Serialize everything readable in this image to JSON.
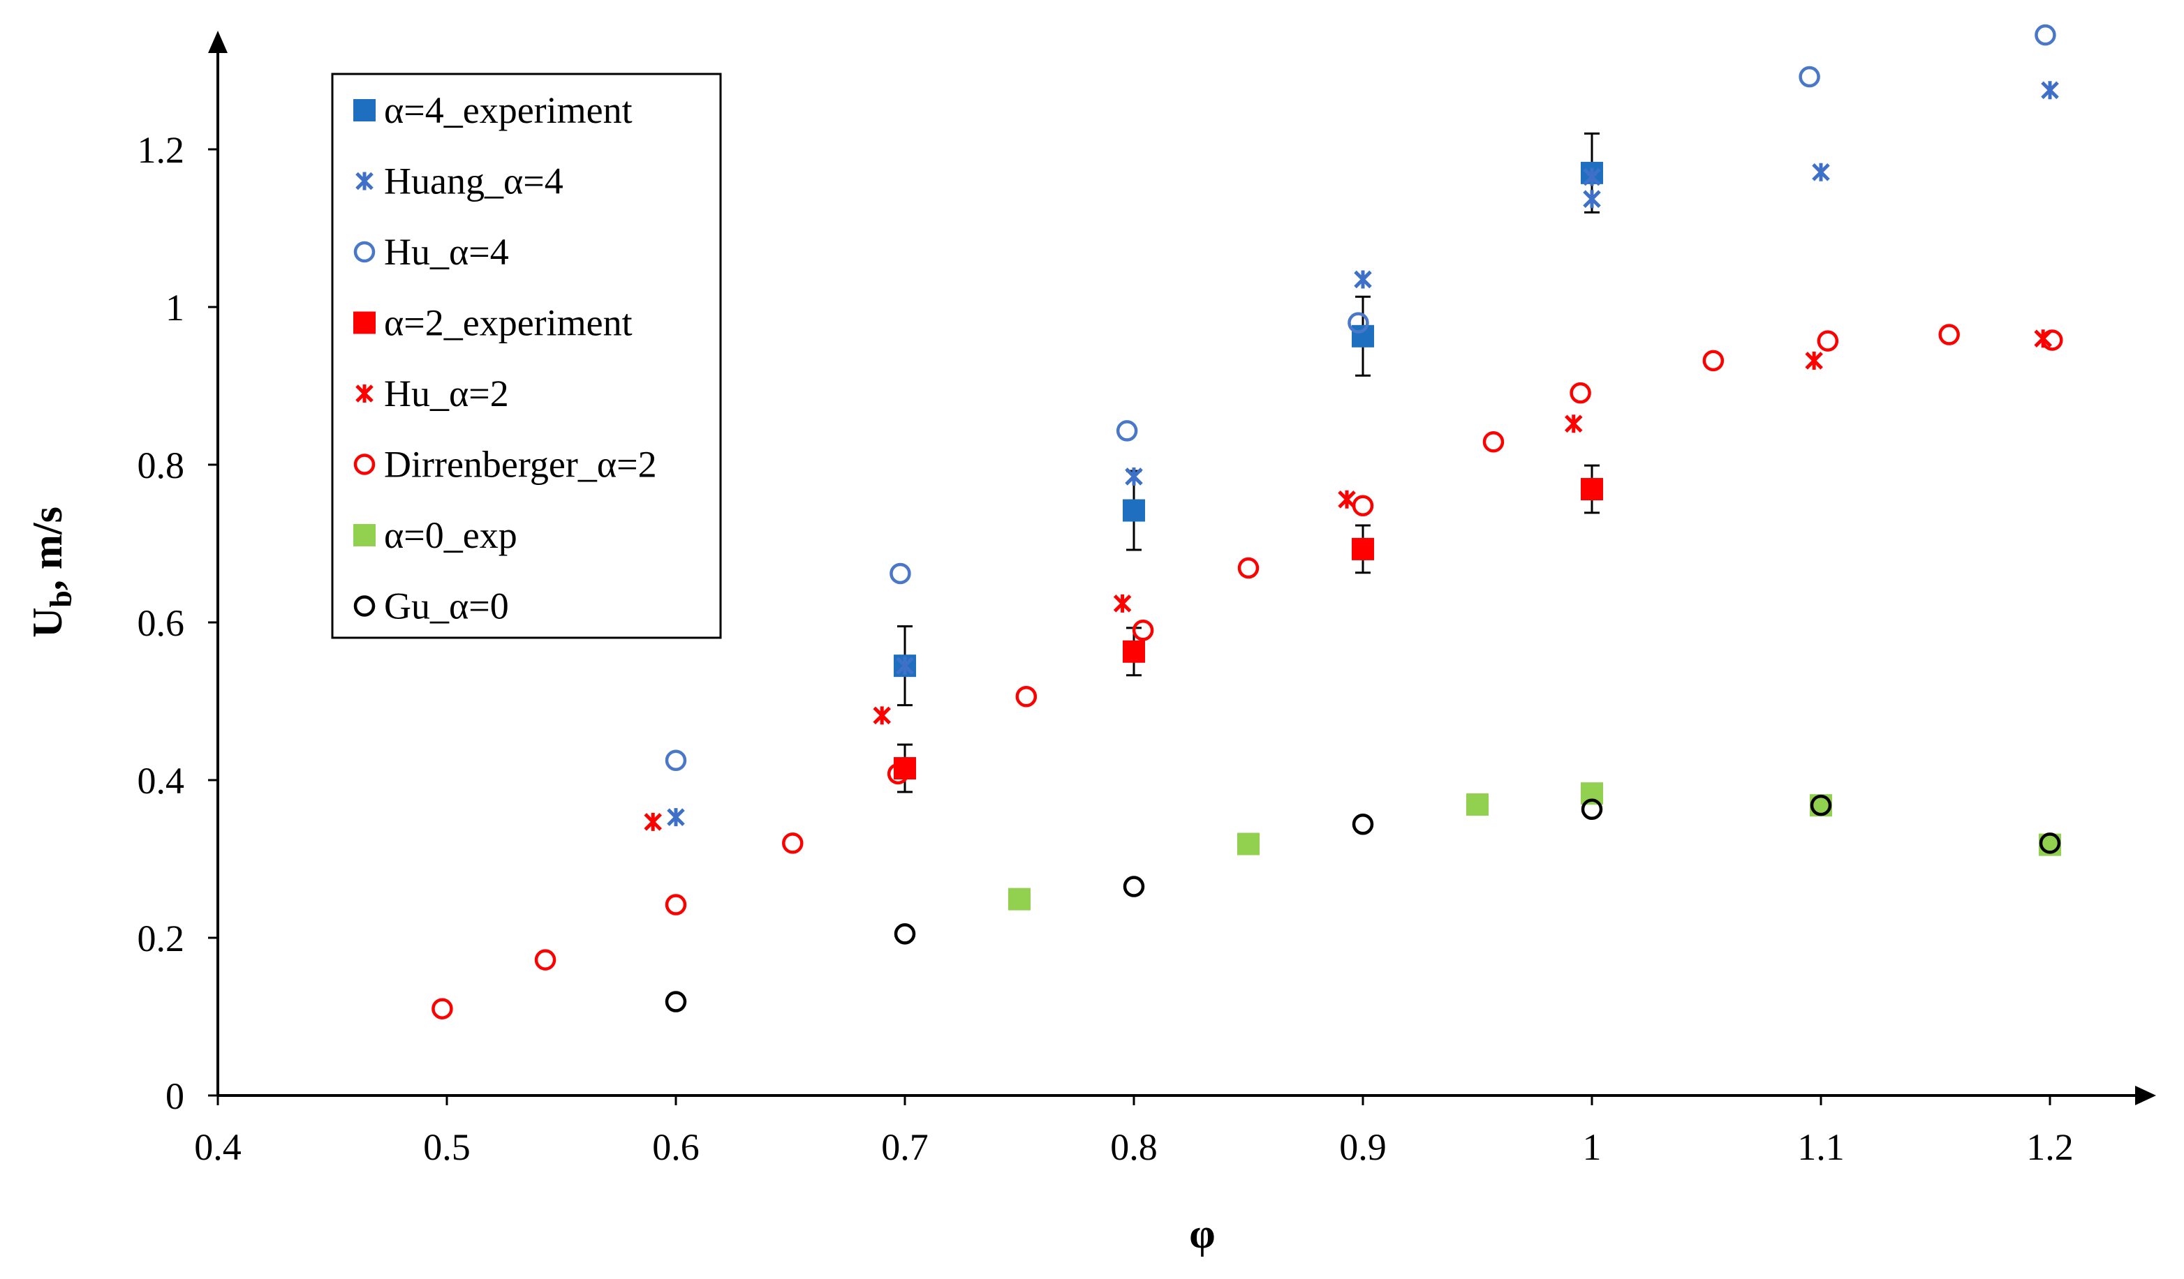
{
  "chart_data": {
    "type": "scatter",
    "title": "",
    "xlabel": "φ",
    "ylabel": "U",
    "ylabel_sub": "b",
    "ylabel_unit": ", m/s",
    "xlim": [
      0.4,
      1.25
    ],
    "ylim": [
      0,
      1.35
    ],
    "xticks": [
      0.4,
      0.5,
      0.6,
      0.7,
      0.8,
      0.9,
      1.0,
      1.1,
      1.2
    ],
    "xtick_labels": [
      "0.4",
      "0.5",
      "0.6",
      "0.7",
      "0.8",
      "0.9",
      "1",
      "1.1",
      "1.2"
    ],
    "yticks": [
      0,
      0.2,
      0.4,
      0.6,
      0.8,
      1.0,
      1.2
    ],
    "ytick_labels": [
      "0",
      "0.2",
      "0.4",
      "0.6",
      "0.8",
      "1",
      "1.2"
    ],
    "grid": false,
    "legend_position": "top-left",
    "series": [
      {
        "name": "α=4_experiment",
        "marker": "square",
        "color": "#1f6fc1",
        "x": [
          0.7,
          0.8,
          0.9,
          1.0
        ],
        "y": [
          0.545,
          0.742,
          0.963,
          1.17
        ],
        "error": [
          0.05,
          0.05,
          0.05,
          0.05
        ]
      },
      {
        "name": "Huang_α=4",
        "marker": "star",
        "color": "#3f70c8",
        "x": [
          0.6,
          0.7,
          0.8,
          0.9,
          1.0,
          1.0,
          1.1,
          1.2
        ],
        "y": [
          0.353,
          0.545,
          0.785,
          1.035,
          1.137,
          1.165,
          1.171,
          1.275
        ]
      },
      {
        "name": "Hu_α=4",
        "marker": "circle",
        "color": "#4a78c8",
        "x": [
          0.6,
          0.698,
          0.797,
          0.898,
          1.095,
          1.198
        ],
        "y": [
          0.425,
          0.662,
          0.843,
          0.98,
          1.292,
          1.345
        ]
      },
      {
        "name": "α=2_experiment",
        "marker": "square",
        "color": "#ff0000",
        "x": [
          0.7,
          0.8,
          0.9,
          1.0
        ],
        "y": [
          0.415,
          0.563,
          0.693,
          0.769
        ],
        "error": [
          0.03,
          0.03,
          0.03,
          0.03
        ]
      },
      {
        "name": "Hu_α=2",
        "marker": "star",
        "color": "#ff0000",
        "x": [
          0.59,
          0.69,
          0.795,
          0.893,
          0.992,
          1.097,
          1.197
        ],
        "y": [
          0.347,
          0.482,
          0.624,
          0.756,
          0.852,
          0.932,
          0.96
        ]
      },
      {
        "name": "Dirrenberger_α=2",
        "marker": "circle",
        "color": "#ff0000",
        "x": [
          0.498,
          0.543,
          0.6,
          0.651,
          0.697,
          0.753,
          0.804,
          0.85,
          0.9,
          0.957,
          0.995,
          1.053,
          1.103,
          1.156,
          1.201
        ],
        "y": [
          0.11,
          0.172,
          0.242,
          0.32,
          0.408,
          0.506,
          0.59,
          0.669,
          0.748,
          0.829,
          0.891,
          0.932,
          0.957,
          0.965,
          0.958
        ]
      },
      {
        "name": "α=0_exp",
        "marker": "square",
        "color": "#92d050",
        "x": [
          0.75,
          0.85,
          0.95,
          1.0,
          1.1,
          1.2
        ],
        "y": [
          0.249,
          0.319,
          0.369,
          0.383,
          0.368,
          0.318
        ]
      },
      {
        "name": "Gu_α=0",
        "marker": "circle",
        "color": "#000000",
        "x": [
          0.6,
          0.7,
          0.8,
          0.9,
          1.0,
          1.1,
          1.2
        ],
        "y": [
          0.119,
          0.205,
          0.265,
          0.344,
          0.363,
          0.368,
          0.32
        ]
      }
    ]
  }
}
